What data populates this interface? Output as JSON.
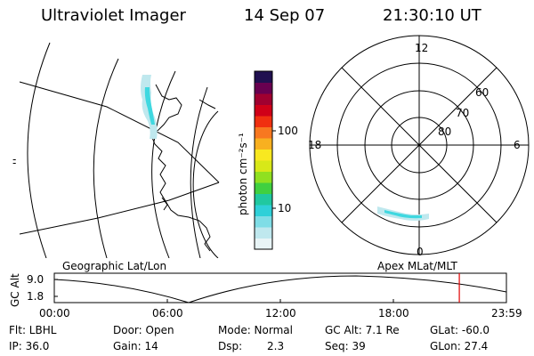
{
  "header": {
    "instrument": "Ultraviolet Imager",
    "date": "14 Sep 07",
    "time": "21:30:10 UT"
  },
  "left_panel": {
    "label": "Geographic Lat/Lon",
    "edge_marks": [
      "-",
      "-"
    ],
    "aurora_color": "#3fd8e0"
  },
  "colorbar": {
    "unit_label": "photon cm⁻²s⁻¹",
    "ticks": [
      "100",
      "10"
    ],
    "scale": "log",
    "colors": [
      "#e8f4f6",
      "#bfe8ee",
      "#7fdde6",
      "#2fd0d8",
      "#20c8a0",
      "#40d040",
      "#90e020",
      "#d8e818",
      "#f8e820",
      "#f8b020",
      "#f87820",
      "#f03010",
      "#d00018",
      "#a00030",
      "#680050",
      "#201050"
    ]
  },
  "right_panel": {
    "label": "Apex MLat/MLT",
    "mlt_labels": [
      "12",
      "18",
      "6",
      "0"
    ],
    "mlat_labels": [
      "60",
      "70",
      "80"
    ],
    "aurora_color": "#3fd8e0"
  },
  "altitude_strip": {
    "y_axis_label": "GC Alt",
    "y_ticks": [
      "9.0",
      "1.8"
    ],
    "x_ticks": [
      "00:00",
      "06:00",
      "12:00",
      "18:00",
      "23:59"
    ],
    "current_time_marker_color": "#e00000",
    "current_time_hours": 21.5
  },
  "info": {
    "filter": "Flt: LBHL",
    "door": "Door: Open",
    "mode": "Mode: Normal",
    "gc_alt": "GC Alt: 7.1 Re",
    "glat": "GLat: -60.0",
    "ip": "IP: 36.0",
    "gain": "Gain: 14",
    "dsp_label": "Dsp:",
    "dsp_value": "2.3",
    "seq": "Seq: 39",
    "glon": "GLon:  27.4"
  }
}
